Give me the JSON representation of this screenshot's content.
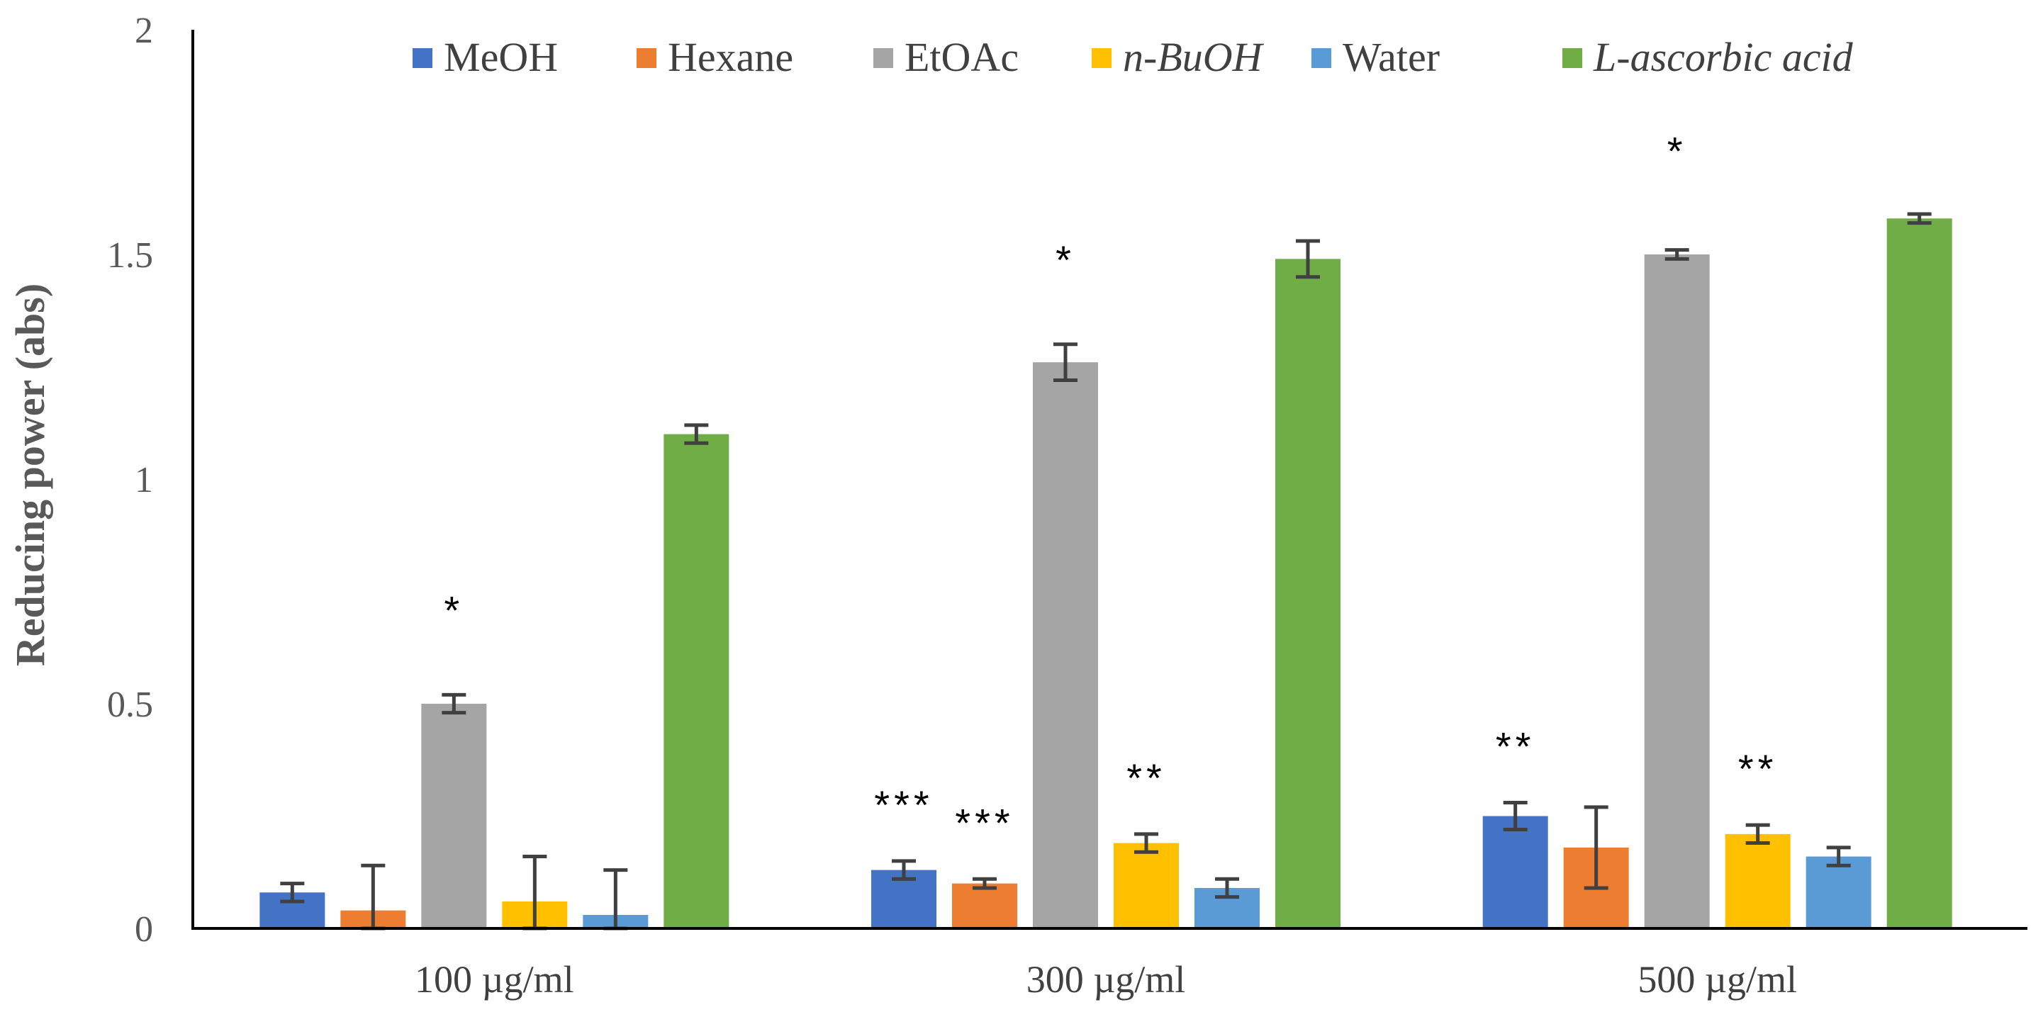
{
  "chart_data": {
    "type": "bar",
    "title": "",
    "xlabel": "",
    "ylabel": "Reducing power (abs)",
    "ylim": [
      0,
      2
    ],
    "yticks": [
      "0",
      "0.5",
      "1",
      "1.5",
      "2"
    ],
    "ytick_values": [
      0,
      0.5,
      1,
      1.5,
      2
    ],
    "legend_position": "top",
    "grid": false,
    "categories": [
      "100 µg/ml",
      "300 µg/ml",
      "500 µg/ml"
    ],
    "series": [
      {
        "name": "MeOH",
        "color": "#4472C4",
        "italic": false,
        "values": [
          0.08,
          0.13,
          0.25
        ],
        "errors": [
          0.02,
          0.02,
          0.03
        ],
        "annotations": [
          "",
          "***",
          "**"
        ]
      },
      {
        "name": "Hexane",
        "color": "#ED7D31",
        "italic": false,
        "values": [
          0.04,
          0.1,
          0.18
        ],
        "errors": [
          0.1,
          0.01,
          0.09
        ],
        "annotations": [
          "",
          "***",
          ""
        ]
      },
      {
        "name": "EtOAc",
        "color": "#A5A5A5",
        "italic": false,
        "values": [
          0.5,
          1.26,
          1.5
        ],
        "errors": [
          0.02,
          0.04,
          0.01
        ],
        "annotations": [
          "*",
          "*",
          "*"
        ]
      },
      {
        "name": "n-BuOH",
        "color": "#FFC000",
        "italic": true,
        "values": [
          0.06,
          0.19,
          0.21
        ],
        "errors": [
          0.1,
          0.02,
          0.02
        ],
        "annotations": [
          "",
          "**",
          "**"
        ]
      },
      {
        "name": "Water",
        "color": "#5B9BD5",
        "italic": false,
        "values": [
          0.03,
          0.09,
          0.16
        ],
        "errors": [
          0.1,
          0.02,
          0.02
        ],
        "annotations": [
          "",
          "",
          ""
        ]
      },
      {
        "name": "L-ascorbic acid",
        "color": "#70AD47",
        "italic": true,
        "values": [
          1.1,
          1.49,
          1.58
        ],
        "errors": [
          0.02,
          0.04,
          0.01
        ],
        "annotations": [
          "",
          "",
          ""
        ]
      }
    ]
  }
}
